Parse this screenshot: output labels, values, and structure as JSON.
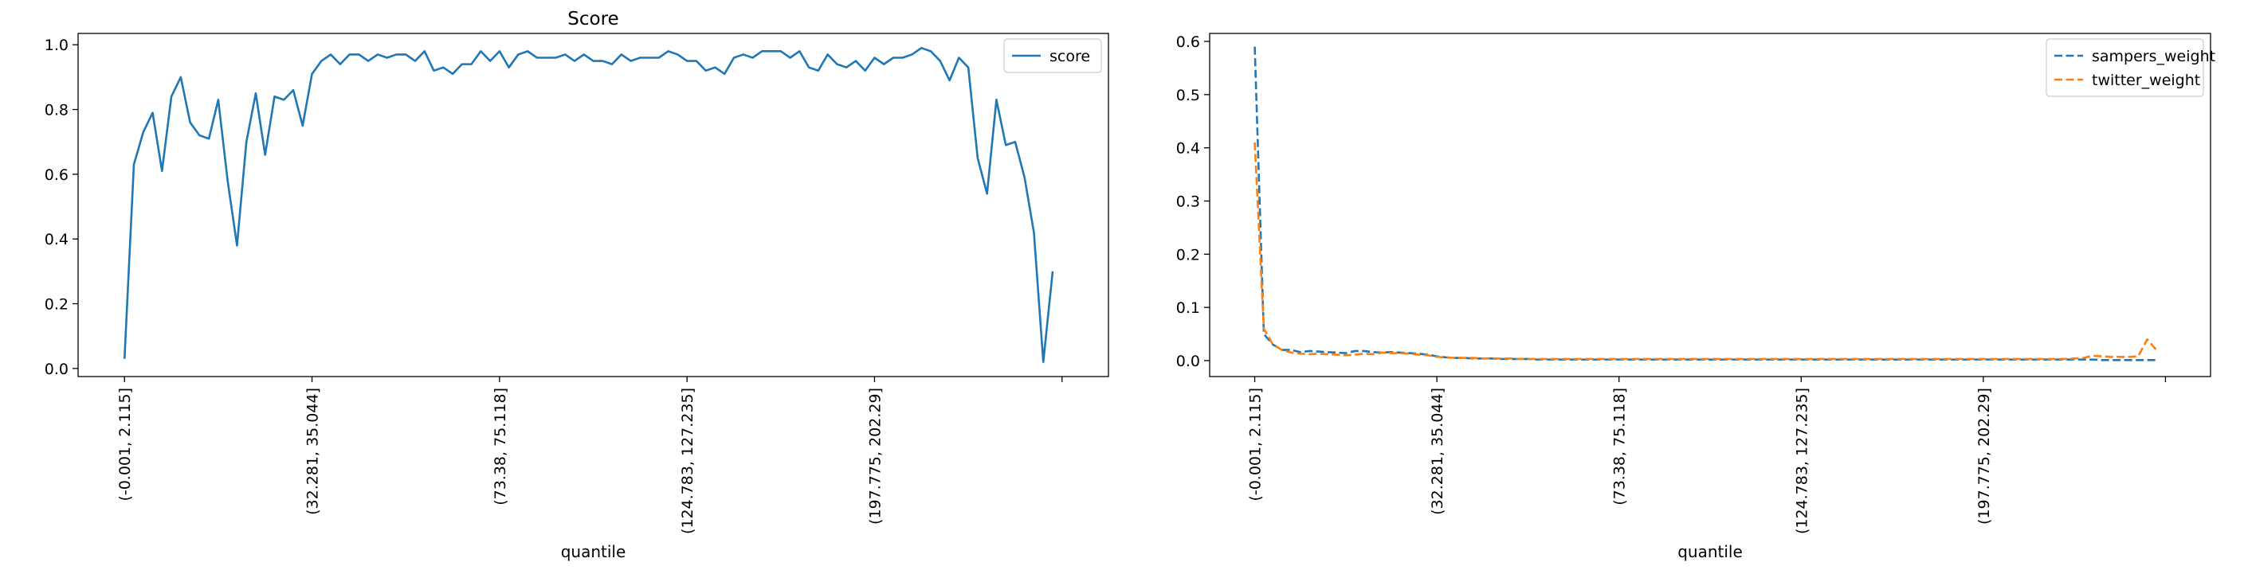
{
  "chart_data": [
    {
      "type": "line",
      "title": "Score",
      "xlabel": "quantile",
      "ylabel": "",
      "ylim": [
        -0.025,
        1.035
      ],
      "yticks": [
        0.0,
        0.2,
        0.4,
        0.6,
        0.8,
        1.0
      ],
      "ytick_labels": [
        "0.0",
        "0.2",
        "0.4",
        "0.6",
        "0.8",
        "1.0"
      ],
      "xtick_labels": [
        "(-0.001, 2.115]",
        "(32.281, 35.044]",
        "(73.38, 75.118]",
        "(124.783, 127.235]",
        "(197.775, 202.29]",
        ""
      ],
      "xtick_positions": [
        0,
        20,
        40,
        60,
        80,
        100
      ],
      "x_count": 100,
      "legend_position": "upper right",
      "colors": {
        "score": "#1f77b4"
      },
      "series": [
        {
          "name": "score",
          "style": "solid",
          "values": [
            0.03,
            0.63,
            0.73,
            0.79,
            0.61,
            0.84,
            0.9,
            0.76,
            0.72,
            0.71,
            0.83,
            0.58,
            0.38,
            0.7,
            0.85,
            0.66,
            0.84,
            0.83,
            0.86,
            0.75,
            0.91,
            0.95,
            0.97,
            0.94,
            0.97,
            0.97,
            0.95,
            0.97,
            0.96,
            0.97,
            0.97,
            0.95,
            0.98,
            0.92,
            0.93,
            0.91,
            0.94,
            0.94,
            0.98,
            0.95,
            0.98,
            0.93,
            0.97,
            0.98,
            0.96,
            0.96,
            0.96,
            0.97,
            0.95,
            0.97,
            0.95,
            0.95,
            0.94,
            0.97,
            0.95,
            0.96,
            0.96,
            0.96,
            0.98,
            0.97,
            0.95,
            0.95,
            0.92,
            0.93,
            0.91,
            0.96,
            0.97,
            0.96,
            0.98,
            0.98,
            0.98,
            0.96,
            0.98,
            0.93,
            0.92,
            0.97,
            0.94,
            0.93,
            0.95,
            0.92,
            0.96,
            0.94,
            0.96,
            0.96,
            0.97,
            0.99,
            0.98,
            0.95,
            0.89,
            0.96,
            0.93,
            0.65,
            0.54,
            0.83,
            0.69,
            0.7,
            0.59,
            0.42,
            0.02,
            0.3
          ]
        }
      ]
    },
    {
      "type": "line",
      "title": "",
      "xlabel": "quantile",
      "ylabel": "",
      "ylim": [
        -0.03,
        0.615
      ],
      "yticks": [
        0.0,
        0.1,
        0.2,
        0.3,
        0.4,
        0.5,
        0.6
      ],
      "ytick_labels": [
        "0.0",
        "0.1",
        "0.2",
        "0.3",
        "0.4",
        "0.5",
        "0.6"
      ],
      "xtick_labels": [
        "(-0.001, 2.115]",
        "(32.281, 35.044]",
        "(73.38, 75.118]",
        "(124.783, 127.235]",
        "(197.775, 202.29]",
        ""
      ],
      "xtick_positions": [
        0,
        20,
        40,
        60,
        80,
        100
      ],
      "x_count": 100,
      "legend_position": "upper right",
      "colors": {
        "sampers_weight": "#1f77b4",
        "twitter_weight": "#ff7f0e"
      },
      "series": [
        {
          "name": "sampers_weight",
          "style": "dashed",
          "values": [
            0.59,
            0.05,
            0.03,
            0.02,
            0.02,
            0.016,
            0.018,
            0.017,
            0.016,
            0.015,
            0.014,
            0.018,
            0.018,
            0.016,
            0.015,
            0.016,
            0.015,
            0.014,
            0.013,
            0.011,
            0.008,
            0.006,
            0.005,
            0.005,
            0.004,
            0.004,
            0.004,
            0.003,
            0.003,
            0.003,
            0.003,
            0.002,
            0.002,
            0.002,
            0.002,
            0.002,
            0.002,
            0.002,
            0.002,
            0.002,
            0.002,
            0.002,
            0.002,
            0.002,
            0.002,
            0.002,
            0.002,
            0.002,
            0.002,
            0.002,
            0.002,
            0.002,
            0.002,
            0.002,
            0.002,
            0.002,
            0.002,
            0.002,
            0.002,
            0.002,
            0.002,
            0.002,
            0.002,
            0.002,
            0.002,
            0.002,
            0.002,
            0.002,
            0.002,
            0.002,
            0.002,
            0.002,
            0.002,
            0.002,
            0.002,
            0.002,
            0.002,
            0.002,
            0.002,
            0.002,
            0.002,
            0.002,
            0.002,
            0.002,
            0.002,
            0.002,
            0.002,
            0.002,
            0.002,
            0.002,
            0.002,
            0.002,
            0.002,
            0.001,
            0.001,
            0.001,
            0.001,
            0.001,
            0.001,
            0.001
          ]
        },
        {
          "name": "twitter_weight",
          "style": "dashed",
          "values": [
            0.41,
            0.06,
            0.03,
            0.02,
            0.015,
            0.013,
            0.012,
            0.013,
            0.012,
            0.011,
            0.01,
            0.011,
            0.013,
            0.012,
            0.015,
            0.014,
            0.014,
            0.013,
            0.011,
            0.01,
            0.007,
            0.006,
            0.005,
            0.005,
            0.005,
            0.004,
            0.004,
            0.004,
            0.004,
            0.003,
            0.003,
            0.003,
            0.003,
            0.003,
            0.003,
            0.003,
            0.003,
            0.003,
            0.003,
            0.003,
            0.003,
            0.003,
            0.003,
            0.003,
            0.003,
            0.003,
            0.003,
            0.003,
            0.003,
            0.003,
            0.003,
            0.003,
            0.003,
            0.003,
            0.003,
            0.003,
            0.003,
            0.003,
            0.003,
            0.003,
            0.003,
            0.003,
            0.003,
            0.003,
            0.003,
            0.003,
            0.003,
            0.003,
            0.003,
            0.003,
            0.003,
            0.003,
            0.003,
            0.003,
            0.003,
            0.003,
            0.003,
            0.003,
            0.003,
            0.003,
            0.003,
            0.003,
            0.003,
            0.003,
            0.003,
            0.003,
            0.003,
            0.003,
            0.003,
            0.003,
            0.004,
            0.005,
            0.009,
            0.008,
            0.007,
            0.007,
            0.007,
            0.008,
            0.04,
            0.02
          ]
        }
      ]
    }
  ]
}
